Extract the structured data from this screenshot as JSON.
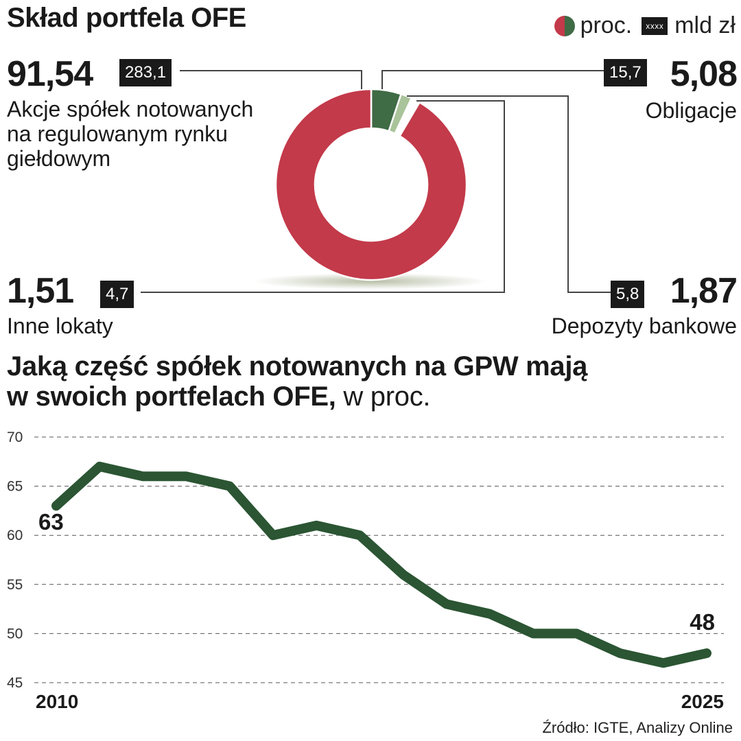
{
  "title": "Skład portfela OFE",
  "legend": {
    "pct_label": "proc.",
    "box_label": "xxxx",
    "amount_label": "mld zł"
  },
  "items": {
    "akcje": {
      "pct": "91,54",
      "amount": "283,1",
      "label_lines": [
        "Akcje spółek notowanych",
        "na regulowanym rynku",
        "giełdowym"
      ]
    },
    "obligacje": {
      "pct": "5,08",
      "amount": "15,7",
      "label": "Obligacje"
    },
    "inne": {
      "pct": "1,51",
      "amount": "4,7",
      "label": "Inne lokaty"
    },
    "depozyty": {
      "pct": "1,87",
      "amount": "5,8",
      "label": "Depozyty bankowe"
    }
  },
  "colors": {
    "akcje": "#c33a4a",
    "obligacje": "#3f6b45",
    "depozyty": "#a9c39a",
    "inne": "#ffffff",
    "line": "#2b5533"
  },
  "line_title": {
    "line1": "Jaką część spółek notowanych na GPW mają",
    "line2": "w swoich portfelach OFE,",
    "unit": "w proc."
  },
  "source": "Źródło: IGTE, Analizy Online",
  "chart_data": [
    {
      "type": "pie",
      "categories": [
        "Akcje spółek notowanych na regulowanym rynku giełdowym",
        "Obligacje",
        "Depozyty bankowe",
        "Inne lokaty"
      ],
      "values": [
        91.54,
        5.08,
        1.87,
        1.51
      ],
      "amounts": [
        283.1,
        15.7,
        5.8,
        4.7
      ],
      "title": "Skład portfela OFE"
    },
    {
      "type": "line",
      "title": "Jaką część spółek notowanych na GPW mają w swoich portfelach OFE, w proc.",
      "x": [
        2010,
        2011,
        2012,
        2013,
        2014,
        2015,
        2016,
        2017,
        2018,
        2019,
        2020,
        2021,
        2022,
        2023,
        2024,
        2025
      ],
      "series": [
        {
          "values": [
            63,
            67,
            66,
            66,
            65,
            60,
            61,
            60,
            56,
            53,
            52,
            50,
            50,
            48,
            47,
            48
          ]
        }
      ],
      "ylim": [
        45,
        70
      ],
      "yticks": [
        45,
        50,
        55,
        60,
        65,
        70
      ],
      "xtick_labels": [
        "2010",
        "2025"
      ],
      "data_labels": [
        {
          "x": 2010,
          "text": "63"
        },
        {
          "x": 2025,
          "text": "48"
        }
      ],
      "grid": true
    }
  ]
}
